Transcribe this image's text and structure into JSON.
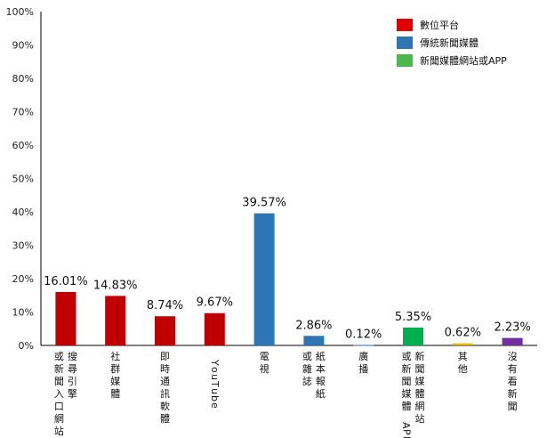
{
  "chart_data": {
    "type": "bar",
    "ylim": [
      0,
      100
    ],
    "yticks": [
      "0%",
      "10%",
      "20%",
      "30%",
      "40%",
      "50%",
      "60%",
      "70%",
      "80%",
      "90%",
      "100%"
    ],
    "categories": [
      [
        "搜尋引擎",
        "或新聞入口網站"
      ],
      [
        "社群媒體"
      ],
      [
        "即時通訊軟體"
      ],
      [
        "YouTube"
      ],
      [
        "電視"
      ],
      [
        "紙本報紙",
        "或雜誌"
      ],
      [
        "廣播"
      ],
      [
        "新聞媒體網站",
        "或新聞媒體APP"
      ],
      [
        "其他"
      ],
      [
        "沒有看新聞"
      ]
    ],
    "values": [
      16.01,
      14.83,
      8.74,
      9.67,
      39.57,
      2.86,
      0.12,
      5.35,
      0.62,
      2.23
    ],
    "value_labels": [
      "16.01%",
      "14.83%",
      "8.74%",
      "9.67%",
      "39.57%",
      "2.86%",
      "0.12%",
      "5.35%",
      "0.62%",
      "2.23%"
    ],
    "bar_colors": [
      "#c00000",
      "#c00000",
      "#c00000",
      "#c00000",
      "#2e75b6",
      "#2e75b6",
      "#2e75b6",
      "#00b050",
      "#e6b800",
      "#7030a0"
    ],
    "legend": [
      {
        "label": "數位平台",
        "color": "#e00000"
      },
      {
        "label": "傳統新聞媒體",
        "color": "#2e75b6"
      },
      {
        "label": "新聞媒體網站或APP",
        "color": "#4cb84c"
      }
    ],
    "legend_position": "top-right",
    "grid": false
  }
}
